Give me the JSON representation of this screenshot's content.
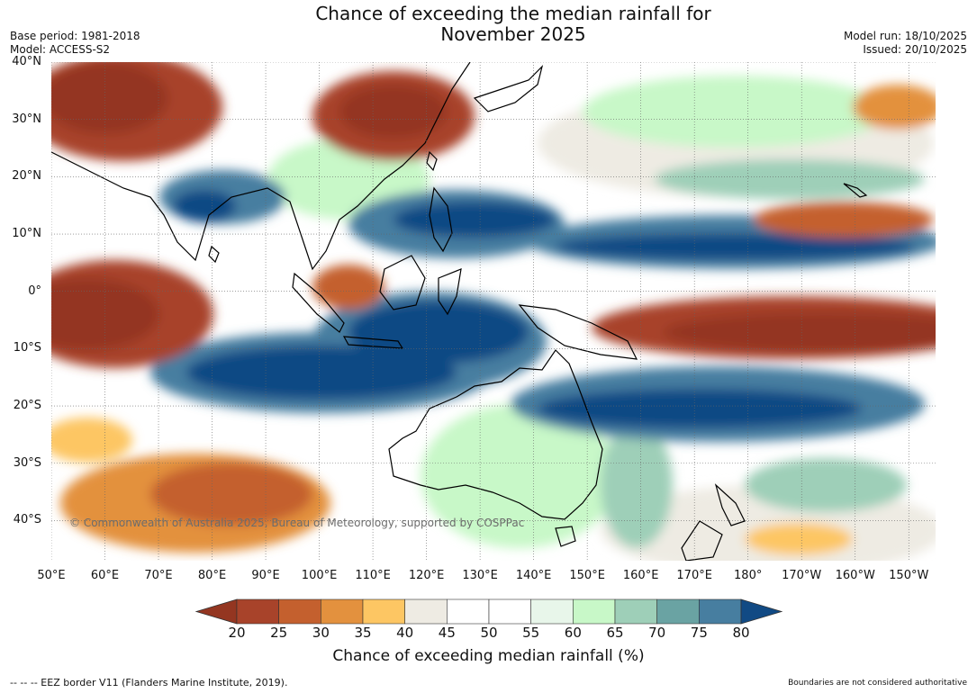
{
  "header": {
    "title_line1": "Chance of exceeding the median rainfall for",
    "title_line2": "November 2025",
    "base_period": "Base period: 1981-2018",
    "model": "Model: ACCESS-S2",
    "model_run": "Model run: 18/10/2025",
    "issued": "Issued: 20/10/2025"
  },
  "map": {
    "copyright": "© Commonwealth of Australia 2025, Bureau of Meteorology, supported by COSPPac",
    "lat_ticks": [
      "40°N",
      "30°N",
      "20°N",
      "10°N",
      "0°",
      "10°S",
      "20°S",
      "30°S",
      "40°S"
    ],
    "lon_ticks": [
      "50°E",
      "60°E",
      "70°E",
      "80°E",
      "90°E",
      "100°E",
      "110°E",
      "120°E",
      "130°E",
      "140°E",
      "150°E",
      "160°E",
      "170°E",
      "180°",
      "170°W",
      "160°W",
      "150°W"
    ],
    "lat_values": [
      40,
      30,
      20,
      10,
      0,
      -10,
      -20,
      -30,
      -40
    ],
    "lon_values": [
      50,
      60,
      70,
      80,
      90,
      100,
      110,
      120,
      130,
      140,
      150,
      160,
      170,
      180,
      190,
      200,
      210
    ],
    "extent": {
      "lon_min": 50,
      "lon_max": 215,
      "lat_min": -47,
      "lat_max": 40
    }
  },
  "colorbar": {
    "labels": [
      "20",
      "25",
      "30",
      "35",
      "40",
      "45",
      "50",
      "55",
      "60",
      "65",
      "70",
      "75",
      "80"
    ],
    "colors": [
      "#a8432a",
      "#c4602e",
      "#e3913e",
      "#fdc663",
      "#eeebe3",
      "#ffffff",
      "#ffffff",
      "#e8f6ea",
      "#c8f8c8",
      "#9ecfb8",
      "#6aa3a3",
      "#477ea0"
    ],
    "under_color": "#943621",
    "over_color": "#114a84",
    "title": "Chance of exceeding median rainfall (%)"
  },
  "footer": {
    "eez": "--  --  -- EEZ border V11 (Flanders Marine Institute, 2019).",
    "disclaimer": "Boundaries are not considered authoritative"
  }
}
